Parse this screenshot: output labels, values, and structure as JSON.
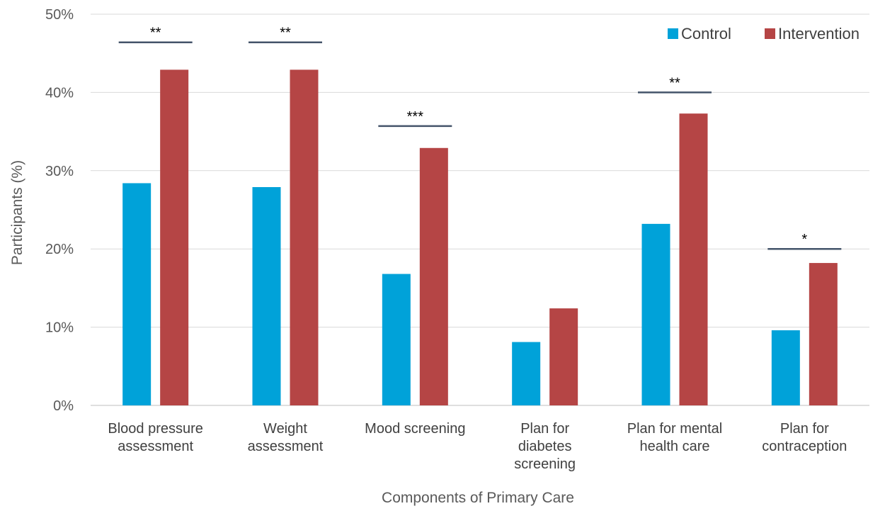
{
  "chart_data": {
    "type": "bar",
    "title": "",
    "xlabel": "Components of Primary Care",
    "ylabel": "Participants (%)",
    "ylim": [
      0,
      50
    ],
    "yticks": [
      0,
      10,
      20,
      30,
      40,
      50
    ],
    "ytick_suffix": "%",
    "grid": true,
    "legend_position": "top-right",
    "categories": [
      [
        "Blood pressure",
        "assessment"
      ],
      [
        "Weight",
        "assessment"
      ],
      [
        "Mood screening"
      ],
      [
        "Plan for",
        "diabetes",
        "screening"
      ],
      [
        "Plan for mental",
        "health care"
      ],
      [
        "Plan for",
        "contraception"
      ]
    ],
    "series": [
      {
        "name": "Control",
        "color": "#00a2d9",
        "values": [
          28.4,
          27.9,
          16.8,
          8.1,
          23.2,
          9.6
        ]
      },
      {
        "name": "Intervention",
        "color": "#b54545",
        "values": [
          42.9,
          42.9,
          32.9,
          12.4,
          37.3,
          18.2
        ]
      }
    ],
    "significance": [
      {
        "category_index": 0,
        "label": "**",
        "y": 46.4
      },
      {
        "category_index": 1,
        "label": "**",
        "y": 46.4
      },
      {
        "category_index": 2,
        "label": "***",
        "y": 35.7
      },
      {
        "category_index": 4,
        "label": "**",
        "y": 40.0
      },
      {
        "category_index": 5,
        "label": "*",
        "y": 20.0
      }
    ]
  }
}
